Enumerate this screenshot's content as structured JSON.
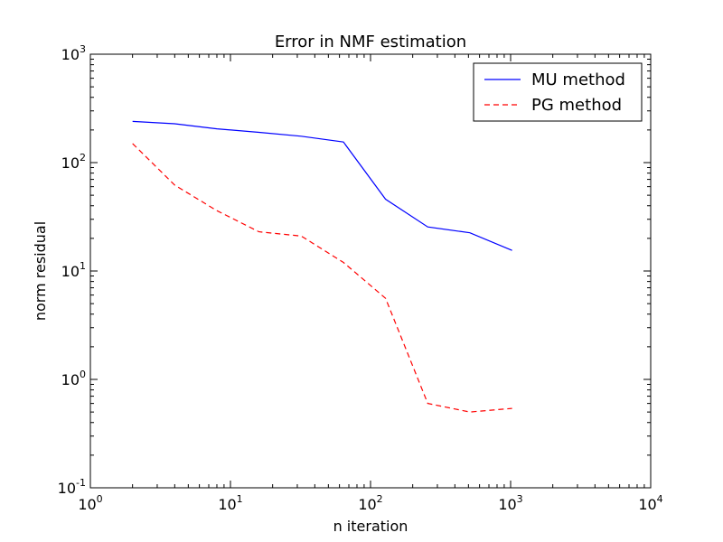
{
  "chart_data": {
    "type": "line",
    "title": "Error in NMF estimation",
    "xlabel": "n iteration",
    "ylabel": "norm residual",
    "xscale": "log",
    "yscale": "log",
    "xlim": [
      1,
      10000
    ],
    "ylim": [
      0.1,
      1000
    ],
    "grid": false,
    "legend_position": "top-right",
    "x_ticks": [
      {
        "value": 1,
        "base": "10",
        "exp": "0"
      },
      {
        "value": 10,
        "base": "10",
        "exp": "1"
      },
      {
        "value": 100,
        "base": "10",
        "exp": "2"
      },
      {
        "value": 1000,
        "base": "10",
        "exp": "3"
      },
      {
        "value": 10000,
        "base": "10",
        "exp": "4"
      }
    ],
    "y_ticks": [
      {
        "value": 0.1,
        "base": "10",
        "exp": "-1"
      },
      {
        "value": 1,
        "base": "10",
        "exp": "0"
      },
      {
        "value": 10,
        "base": "10",
        "exp": "1"
      },
      {
        "value": 100,
        "base": "10",
        "exp": "2"
      },
      {
        "value": 1000,
        "base": "10",
        "exp": "3"
      }
    ],
    "series": [
      {
        "name": "MU method",
        "color": "#0000ff",
        "style": "solid",
        "x": [
          2,
          4,
          8,
          16,
          32,
          64,
          128,
          256,
          512,
          1024
        ],
        "y": [
          240,
          228,
          205,
          190,
          175,
          155,
          46,
          25.5,
          22.5,
          15.5
        ]
      },
      {
        "name": "PG method",
        "color": "#ff0000",
        "style": "dashed",
        "x": [
          2,
          4,
          8,
          16,
          32,
          64,
          128,
          256,
          512,
          1024
        ],
        "y": [
          150,
          62,
          36,
          23,
          21,
          12,
          5.6,
          0.6,
          0.5,
          0.54
        ]
      }
    ]
  }
}
